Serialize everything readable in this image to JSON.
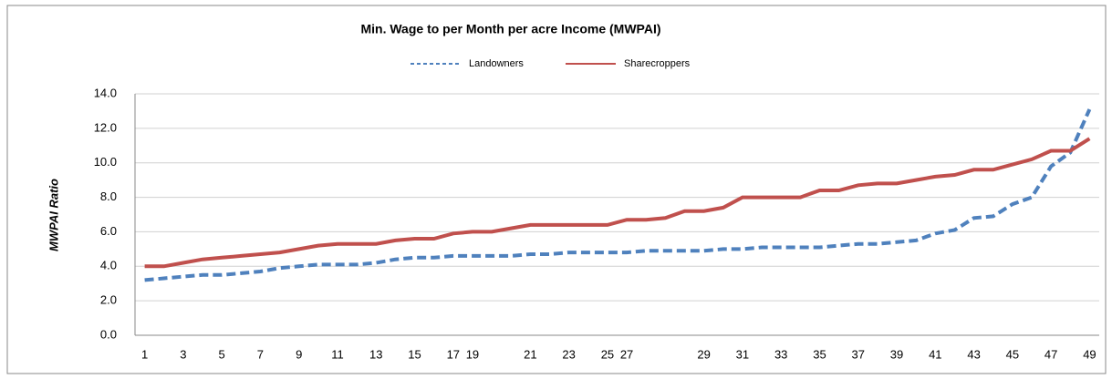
{
  "chart_data": {
    "type": "line",
    "title": "Min. Wage to per Month per acre Income (MWPAI)",
    "y_label": "MWPAI Ratio",
    "categories": [
      1,
      null,
      3,
      null,
      5,
      null,
      7,
      null,
      9,
      null,
      11,
      null,
      13,
      null,
      15,
      null,
      17,
      19,
      null,
      null,
      21,
      null,
      23,
      null,
      25,
      27,
      null,
      null,
      null,
      29,
      null,
      31,
      null,
      33,
      null,
      35,
      null,
      37,
      null,
      39,
      null,
      41,
      null,
      43,
      null,
      45,
      null,
      47,
      null,
      49
    ],
    "series": [
      {
        "name": "Landowners",
        "color": "#4f81bd",
        "dashed": true,
        "values": [
          3.2,
          3.3,
          3.4,
          3.5,
          3.5,
          3.6,
          3.7,
          3.9,
          4.0,
          4.1,
          4.1,
          4.1,
          4.2,
          4.4,
          4.5,
          4.5,
          4.6,
          4.6,
          4.6,
          4.6,
          4.7,
          4.7,
          4.8,
          4.8,
          4.8,
          4.8,
          4.9,
          4.9,
          4.9,
          4.9,
          5.0,
          5.0,
          5.1,
          5.1,
          5.1,
          5.1,
          5.2,
          5.3,
          5.3,
          5.4,
          5.5,
          5.9,
          6.1,
          6.8,
          6.9,
          7.6,
          8.0,
          9.8,
          10.6,
          13.1
        ]
      },
      {
        "name": "Sharecroppers",
        "color": "#c0504d",
        "dashed": false,
        "values": [
          4.0,
          4.0,
          4.2,
          4.4,
          4.5,
          4.6,
          4.7,
          4.8,
          5.0,
          5.2,
          5.3,
          5.3,
          5.3,
          5.5,
          5.6,
          5.6,
          5.9,
          6.0,
          6.0,
          6.2,
          6.4,
          6.4,
          6.4,
          6.4,
          6.4,
          6.7,
          6.7,
          6.8,
          7.2,
          7.2,
          7.4,
          8.0,
          8.0,
          8.0,
          8.0,
          8.4,
          8.4,
          8.7,
          8.8,
          8.8,
          9.0,
          9.2,
          9.3,
          9.6,
          9.6,
          9.9,
          10.2,
          10.7,
          10.7,
          11.4
        ]
      }
    ],
    "ylim": [
      0,
      14
    ],
    "yticks": [
      {
        "value": 0,
        "label": "0.0"
      },
      {
        "value": 2,
        "label": "2.0"
      },
      {
        "value": 4,
        "label": "4.0"
      },
      {
        "value": 6,
        "label": "6.0"
      },
      {
        "value": 8,
        "label": "8.0"
      },
      {
        "value": 10,
        "label": "10.0"
      },
      {
        "value": 12,
        "label": "12.0"
      },
      {
        "value": 14,
        "label": "14.0"
      }
    ],
    "grid": true,
    "legend": "top"
  }
}
